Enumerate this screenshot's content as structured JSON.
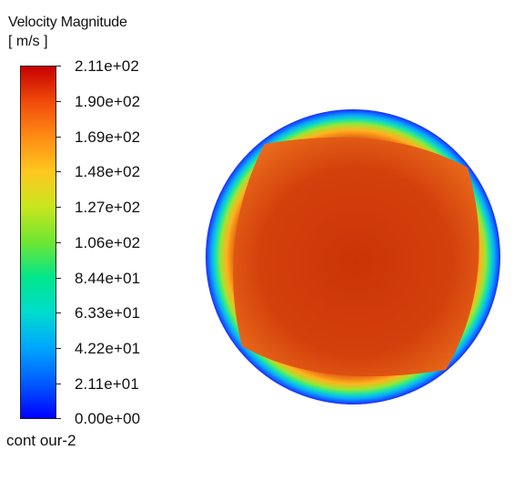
{
  "legend": {
    "title": "Velocity Magnitude",
    "units": "[ m/s ]",
    "ticks": [
      "2.11e+02",
      "1.90e+02",
      "1.69e+02",
      "1.48e+02",
      "1.27e+02",
      "1.06e+02",
      "8.44e+01",
      "6.33e+01",
      "4.22e+01",
      "2.11e+01",
      "0.00e+00"
    ],
    "min_value": 0,
    "max_value": 211,
    "colormap": [
      "#0000ff",
      "#00a6ff",
      "#00e68c",
      "#c8e61e",
      "#ff8c14",
      "#c80000"
    ]
  },
  "contour": {
    "name": "cont our-2"
  },
  "field": {
    "core_color": "#d23c0a",
    "outer_ring_color": "#1a2bff",
    "wall_value": 0,
    "core_value_approx": 180
  }
}
